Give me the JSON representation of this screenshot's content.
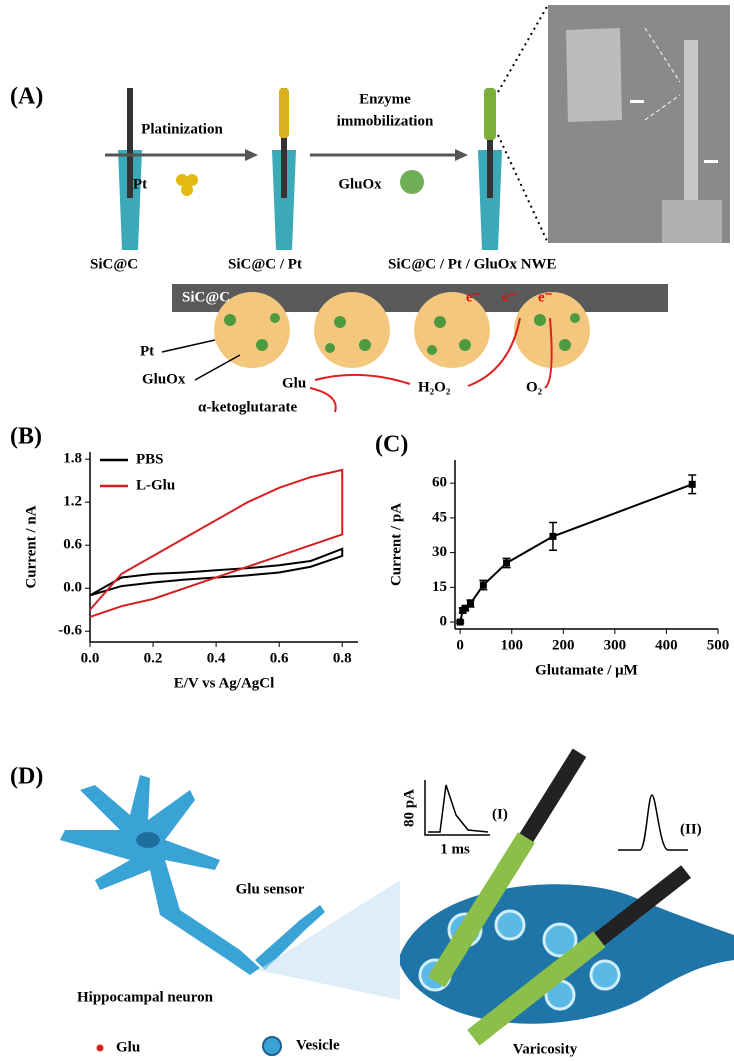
{
  "panel_a": {
    "label": "(A)",
    "step1": "Platinization",
    "step2": [
      "Enzyme",
      "immobilization"
    ],
    "reagent1": "Pt",
    "reagent2": "GluOx",
    "electrodes": [
      "SiC@C",
      "SiC@C / Pt",
      "SiC@C / Pt / GluOx NWE"
    ],
    "mechanism": {
      "substrate": "SiC@C",
      "electrons": [
        "e⁻",
        "e⁻",
        "e⁻"
      ],
      "pt": "Pt",
      "gluox": "GluOx",
      "glu": "Glu",
      "h2o2": "H₂O₂",
      "o2": "O₂",
      "product": "α-ketoglutarate"
    }
  },
  "chart_data": [
    {
      "type": "line",
      "panel_label": "(B)",
      "x_label": "E/V vs Ag/AgCl",
      "y_label": "Current / nA",
      "x": [
        0,
        0.1,
        0.2,
        0.3,
        0.4,
        0.5,
        0.6,
        0.7,
        0.8,
        0.8,
        0.7,
        0.6,
        0.5,
        0.4,
        0.3,
        0.2,
        0.1,
        0
      ],
      "series": [
        {
          "name": "PBS",
          "color": "#000000",
          "values": [
            -0.1,
            0.03,
            0.08,
            0.12,
            0.15,
            0.18,
            0.22,
            0.3,
            0.45,
            0.55,
            0.38,
            0.32,
            0.28,
            0.25,
            0.22,
            0.2,
            0.15,
            -0.1
          ]
        },
        {
          "name": "L-Glu",
          "color": "#d42020",
          "values": [
            -0.4,
            -0.25,
            -0.15,
            0.0,
            0.15,
            0.3,
            0.45,
            0.6,
            0.75,
            1.65,
            1.55,
            1.4,
            1.2,
            0.95,
            0.7,
            0.45,
            0.2,
            -0.3
          ]
        }
      ],
      "xlim": [
        0,
        0.85
      ],
      "xticks": [
        {
          "value": 0,
          "label": "0.0"
        },
        0.2,
        0.4,
        0.6,
        0.8
      ],
      "ylim": [
        -0.75,
        1.9
      ],
      "yticks": [
        -0.6,
        {
          "value": 0,
          "label": "0.0"
        },
        0.6,
        1.2,
        1.8
      ],
      "legend": "upper left"
    },
    {
      "type": "line",
      "panel_label": "(C)",
      "x_label": "Glutamate / μM",
      "y_label": "Current / pA",
      "x": [
        0,
        5,
        10,
        20,
        45,
        90,
        180,
        450
      ],
      "series": [
        {
          "color": "#000000",
          "values": [
            0,
            5,
            6,
            8,
            16,
            25.5,
            37,
            59.5
          ],
          "errors": [
            0.5,
            1,
            1,
            1.5,
            2,
            2,
            6,
            4
          ]
        }
      ],
      "xlim": [
        -10,
        500
      ],
      "xticks": [
        0,
        100,
        200,
        300,
        400,
        500
      ],
      "ylim": [
        -3,
        70
      ],
      "yticks": [
        0,
        15,
        30,
        45,
        60
      ]
    }
  ],
  "panel_d": {
    "label": "(D)",
    "scale_y": "80 pA",
    "scale_x": "1 ms",
    "trace1": "(I)",
    "trace2": "(II)",
    "sensor": "Glu sensor",
    "neuron": "Hippocampal neuron",
    "legend": [
      "Glu",
      "Vesicle"
    ],
    "varicosity": "Varicosity"
  }
}
